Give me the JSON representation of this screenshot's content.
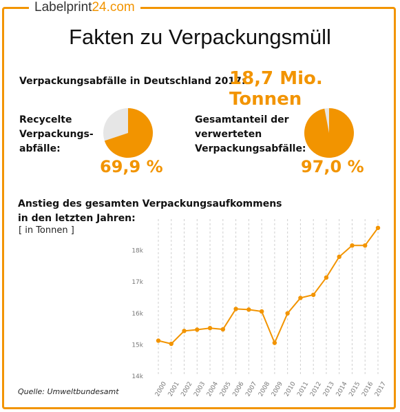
{
  "logo": {
    "text_main": "Labelprint",
    "text_accent": "24.com"
  },
  "title": "Fakten zu Verpackungsmüll",
  "stat": {
    "label": "Verpackungsabfälle in Deutschland 2017:",
    "value": "18,7 Mio. Tonnen"
  },
  "kpis": [
    {
      "label_lines": [
        "Recycelte",
        "Verpackungs-",
        "abfälle:"
      ],
      "value": "69,9 %",
      "fraction": 0.699
    },
    {
      "label_lines": [
        "Gesamtanteil der",
        "verwerteten",
        "Verpackungsabfälle:"
      ],
      "value": "97,0 %",
      "fraction": 0.97
    }
  ],
  "colors": {
    "accent": "#f29400",
    "pie_rest": "#e6e6e6",
    "grid": "#cfcfcf"
  },
  "chart_title_lines": [
    "Anstieg des gesamten Verpackungsaufkommens",
    "in den letzten Jahren:"
  ],
  "chart_unit": "[ in Tonnen ]",
  "source": "Quelle: Umweltbundesamt",
  "chart_data": {
    "type": "line",
    "title": "Anstieg des gesamten Verpackungsaufkommens in den letzten Jahren:",
    "ylabel": "[ in Tonnen ]",
    "x": [
      "2000",
      "2001",
      "2002",
      "2003",
      "2004",
      "2005",
      "2006",
      "2007",
      "2008",
      "2009",
      "2010",
      "2011",
      "2012",
      "2013",
      "2014",
      "2015",
      "2016",
      "2017"
    ],
    "y": [
      15130,
      15030,
      15440,
      15480,
      15530,
      15490,
      16140,
      16120,
      16060,
      15060,
      16000,
      16490,
      16590,
      17140,
      17800,
      18160,
      18160,
      18720
    ],
    "yticks": [
      "14k",
      "15k",
      "16k",
      "17k",
      "18k"
    ],
    "ylim": [
      14000,
      19000
    ],
    "grid": "vertical dashed",
    "color": "#f29400"
  }
}
